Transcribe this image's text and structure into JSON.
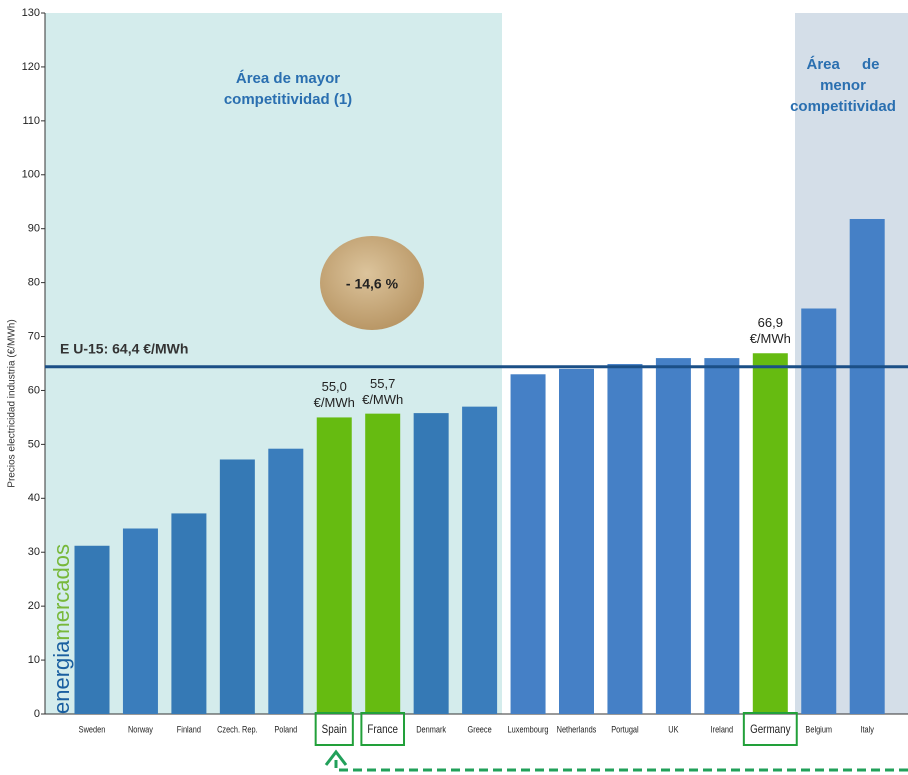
{
  "chart_data": {
    "type": "bar",
    "y_label": "Precios electricidad industria (€/MWh)",
    "categories": [
      "Sweden",
      "Norway",
      "Finland",
      "Czech. Rep.",
      "Poland",
      "Spain",
      "France",
      "Denmark",
      "Greece",
      "Luxembourg",
      "Netherlands",
      "Portugal",
      "UK",
      "Ireland",
      "Germany",
      "Belgium",
      "Italy"
    ],
    "values": [
      31.2,
      34.4,
      37.2,
      47.2,
      49.2,
      55.0,
      55.7,
      55.8,
      57.0,
      63.0,
      64.0,
      64.9,
      66.0,
      66.0,
      66.9,
      75.2,
      91.8
    ],
    "value_labels": [
      null,
      null,
      null,
      null,
      null,
      "55,0 €/MWh",
      "55,7 €/MWh",
      null,
      null,
      null,
      null,
      null,
      null,
      null,
      "66,9 €/MWh",
      null,
      null
    ],
    "colors": [
      "#3579b5",
      "#3a7dbc",
      "#3579b5",
      "#3579b5",
      "#3a7dbc",
      "#66bb11",
      "#66bb11",
      "#3579b5",
      "#3a7dbc",
      "#4580c6",
      "#4580c6",
      "#4580c6",
      "#4580c6",
      "#4580c6",
      "#66bb11",
      "#4580c6",
      "#4580c6"
    ],
    "highlighted": [
      false,
      false,
      false,
      false,
      false,
      true,
      true,
      false,
      false,
      false,
      false,
      false,
      false,
      false,
      true,
      false,
      false
    ],
    "ylim": [
      0,
      130
    ],
    "yticks": [
      0,
      10,
      20,
      30,
      40,
      50,
      60,
      70,
      80,
      90,
      100,
      110,
      120,
      130
    ],
    "reference_line": {
      "value": 64.4,
      "label": "E U-15: 64,4 €/MWh",
      "color": "#1b4f86"
    },
    "annotations": {
      "left_area": "Área de mayor competitividad (1)",
      "right_area": "Área de menor competitividad",
      "difference": "- 14,6 %"
    },
    "watermark": [
      "energia",
      "mercados"
    ]
  }
}
